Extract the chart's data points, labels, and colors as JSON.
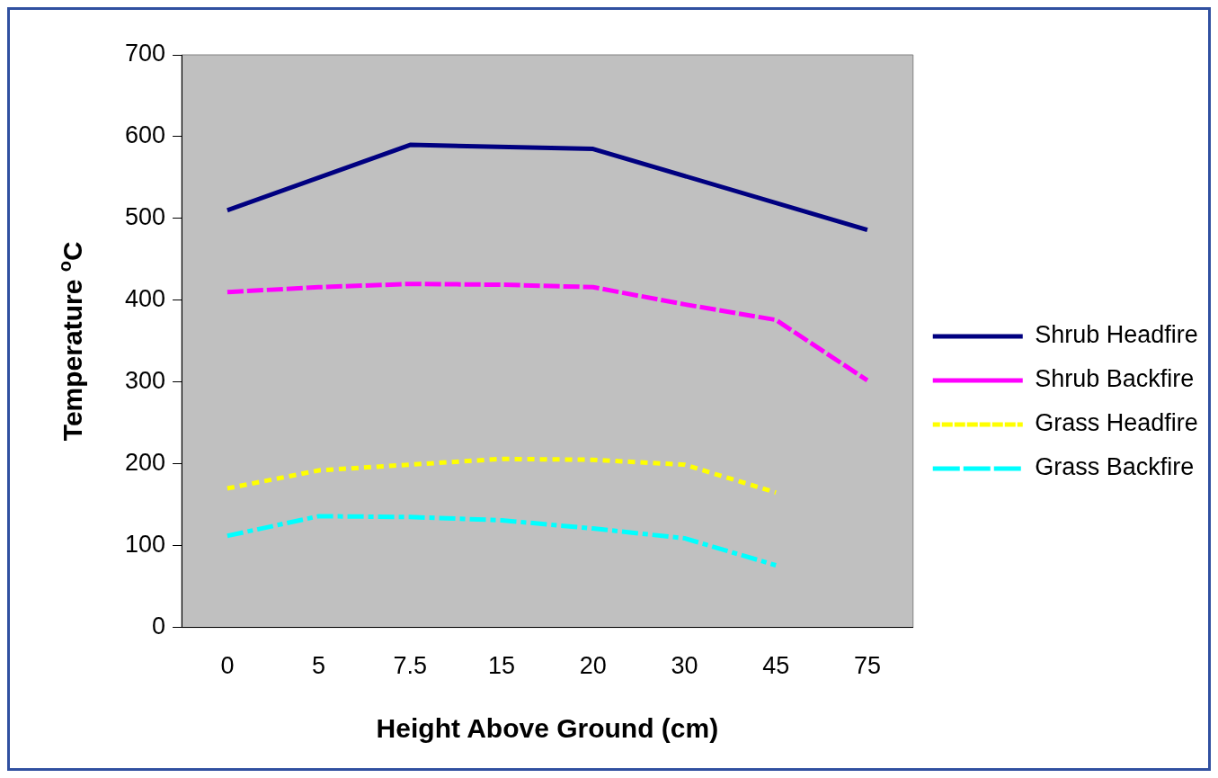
{
  "chart_data": {
    "type": "line",
    "xlabel": "Height Above Ground (cm)",
    "ylabel": "Temperature $^{o}$C",
    "categories": [
      "0",
      "5",
      "7.5",
      "15",
      "20",
      "30",
      "45",
      "75"
    ],
    "ylim": [
      0,
      700
    ],
    "yticks": [
      0,
      100,
      200,
      300,
      400,
      500,
      600,
      700
    ],
    "grid": false,
    "legend": "right",
    "series": [
      {
        "name": "Shrub Headfire",
        "color": "#000080",
        "line_style": "solid",
        "values": [
          510,
          null,
          590,
          null,
          585,
          null,
          null,
          486
        ]
      },
      {
        "name": "Shrub Backfire",
        "color": "#ff00ff",
        "line_style": "dashed",
        "values": [
          410,
          416,
          420,
          419,
          416,
          395,
          376,
          302
        ]
      },
      {
        "name": "Grass Headfire",
        "color": "#ffff00",
        "line_style": "dotted",
        "values": [
          170,
          192,
          199,
          206,
          205,
          199,
          165,
          null
        ]
      },
      {
        "name": "Grass Backfire",
        "color": "#00ffff",
        "line_style": "dashdot",
        "values": [
          112,
          136,
          135,
          131,
          121,
          109,
          76,
          null
        ]
      }
    ]
  }
}
